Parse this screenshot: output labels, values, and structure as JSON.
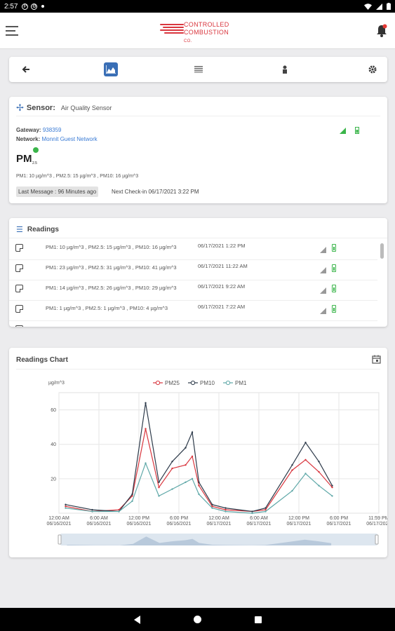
{
  "status_bar": {
    "time": "2:57",
    "icons": [
      "cast-icon",
      "settings-icon"
    ],
    "right_icons": [
      "wifi-icon",
      "signal-icon",
      "battery-icon"
    ]
  },
  "app_bar": {
    "logo": {
      "line1": "CONTROLLED",
      "line2": "COMBUSTION",
      "suffix": "CO.",
      "color": "#d9363e"
    }
  },
  "toolbar": {
    "buttons": [
      {
        "name": "back",
        "icon": "arrow-left-icon"
      },
      {
        "name": "chart",
        "icon": "chart-icon",
        "active": true
      },
      {
        "name": "list",
        "icon": "list-icon"
      },
      {
        "name": "person",
        "icon": "person-icon"
      },
      {
        "name": "settings",
        "icon": "gear-icon"
      }
    ],
    "accent": "#3a6fb6"
  },
  "sensor": {
    "label": "Sensor:",
    "name": "Air Quality Sensor",
    "gateway_label": "Gateway:",
    "gateway_value": "938359",
    "network_label": "Network:",
    "network_value": "Monnit Guest Network",
    "pm_icon_text": "PM",
    "pm_icon_sub": "2.5",
    "current_reading": "PM1: 10 µg/m^3 , PM2.5: 15 µg/m^3 , PM10: 16 µg/m^3",
    "last_message": "Last Message : 96 Minutes ago",
    "next_checkin": "Next Check-in 06/17/2021 3:22 PM"
  },
  "readings": {
    "title": "Readings",
    "rows": [
      {
        "message": "PM1: 10 µg/m^3 , PM2.5: 15 µg/m^3 , PM10: 16 µg/m^3",
        "date": "06/17/2021 1:22 PM"
      },
      {
        "message": "PM1: 23 µg/m^3 , PM2.5: 31 µg/m^3 , PM10: 41 µg/m^3",
        "date": "06/17/2021 11:22 AM"
      },
      {
        "message": "PM1: 14 µg/m^3 , PM2.5: 26 µg/m^3 , PM10: 29 µg/m^3",
        "date": "06/17/2021 9:22 AM"
      },
      {
        "message": "PM1: 1 µg/m^3 , PM2.5: 1 µg/m^3 , PM10: 4 µg/m^3",
        "date": "06/17/2021 7:22 AM"
      }
    ]
  },
  "chart_data": {
    "type": "line",
    "title": "Readings Chart",
    "ylabel": "µg/m^3",
    "ylim": [
      0,
      70
    ],
    "yticks": [
      20,
      40,
      60
    ],
    "x_ticks": [
      {
        "line1": "12:00 AM",
        "line2": "06/16/2021"
      },
      {
        "line1": "6:00 AM",
        "line2": "06/16/2021"
      },
      {
        "line1": "12:00 PM",
        "line2": "06/16/2021"
      },
      {
        "line1": "6:00 PM",
        "line2": "06/16/2021"
      },
      {
        "line1": "12:00 AM",
        "line2": "06/17/2021"
      },
      {
        "line1": "6:00 AM",
        "line2": "06/17/2021"
      },
      {
        "line1": "12:00 PM",
        "line2": "06/17/2021"
      },
      {
        "line1": "6:00 PM",
        "line2": "06/17/2021"
      },
      {
        "line1": "11:59 PM",
        "line2": "06/17/2021"
      }
    ],
    "x_hours": [
      1,
      5,
      9,
      11,
      13,
      15,
      17,
      19,
      20,
      21,
      23,
      25,
      29,
      31,
      35,
      37,
      39,
      41
    ],
    "series": [
      {
        "name": "PM25",
        "color": "#d9363e",
        "values": [
          4,
          1,
          2,
          10,
          49,
          15,
          26,
          28,
          33,
          16,
          4,
          2,
          1,
          2,
          25,
          31,
          24,
          15
        ]
      },
      {
        "name": "PM10",
        "color": "#2d3a4a",
        "values": [
          5,
          2,
          1,
          11,
          64,
          18,
          30,
          38,
          47,
          18,
          5,
          3,
          1,
          3,
          28,
          41,
          30,
          16
        ]
      },
      {
        "name": "PM1",
        "color": "#5fa8a8",
        "values": [
          3,
          1,
          1,
          7,
          29,
          10,
          14,
          18,
          20,
          11,
          3,
          1,
          0,
          1,
          13,
          23,
          16,
          10
        ]
      }
    ],
    "legend_position": "top"
  }
}
